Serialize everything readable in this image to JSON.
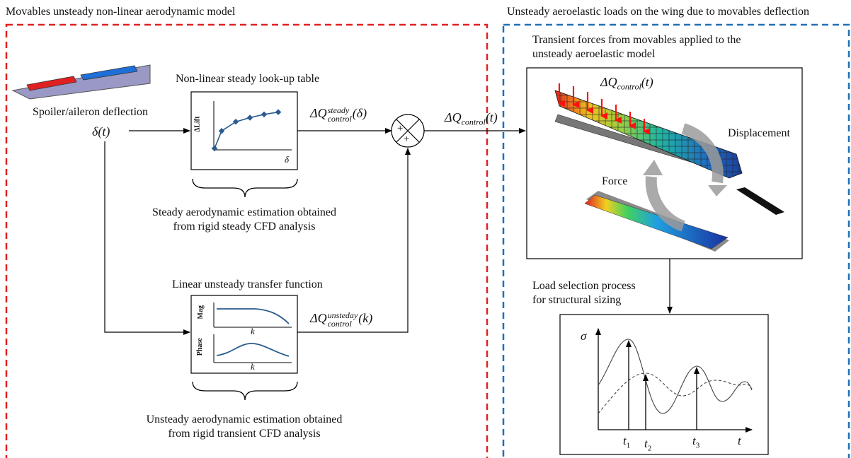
{
  "left_panel": {
    "title": "Movables unsteady non-linear aerodynamic model",
    "input_label": "Spoiler/aileron deflection",
    "input_symbol": "δ(t)",
    "steady_block": {
      "title": "Non-linear steady look-up table",
      "y_axis": "ΔLift",
      "x_axis": "δ",
      "output_base": "ΔQ",
      "output_sub": "control",
      "output_sup": "steady",
      "output_arg": "(δ)",
      "brace_line1": "Steady aerodynamic estimation obtained",
      "brace_line2": "from rigid steady CFD analysis",
      "points": [
        [
          0.0,
          0.0
        ],
        [
          0.1,
          0.38
        ],
        [
          0.3,
          0.58
        ],
        [
          0.5,
          0.67
        ],
        [
          0.7,
          0.74
        ],
        [
          0.9,
          0.79
        ]
      ]
    },
    "unsteady_block": {
      "title": "Linear unsteady transfer function",
      "mag_label": "Mag",
      "phase_label": "Phase",
      "x_axis": "k",
      "output_base": "ΔQ",
      "output_sub": "control",
      "output_sup": "unsteday",
      "output_arg": "(k)",
      "brace_line1": "Unsteady aerodynamic estimation obtained",
      "brace_line2": "from rigid transient CFD analysis"
    },
    "summing_signs": [
      "+",
      "+"
    ]
  },
  "right_panel": {
    "title": "Unsteady aeroelastic loads on the wing due to movables deflection",
    "model_caption_line1": "Transient forces from movables applied to the",
    "model_caption_line2": "unsteady aeroelastic model",
    "force_label": "ΔQ",
    "force_sub": "control",
    "force_arg": "(t)",
    "displacement_label": "Displacement",
    "force_word": "Force",
    "selection_line1": "Load selection process",
    "selection_line2": "for structural sizing",
    "stress_label": "σ",
    "time_label": "t",
    "time_markers": [
      "t",
      "t",
      "t"
    ],
    "time_marker_subs": [
      "1",
      "2",
      "3"
    ]
  },
  "connector": {
    "label_base": "ΔQ",
    "label_sub": "control",
    "label_arg": "(t)"
  },
  "colors": {
    "left_border": "#e02020",
    "right_border": "#1f6fb8",
    "spoiler": "#e02020",
    "aileron": "#1f6fd8",
    "wing": "#9a98c4",
    "arrow_red": "#ff1010",
    "curve": "#2b5a8f"
  }
}
